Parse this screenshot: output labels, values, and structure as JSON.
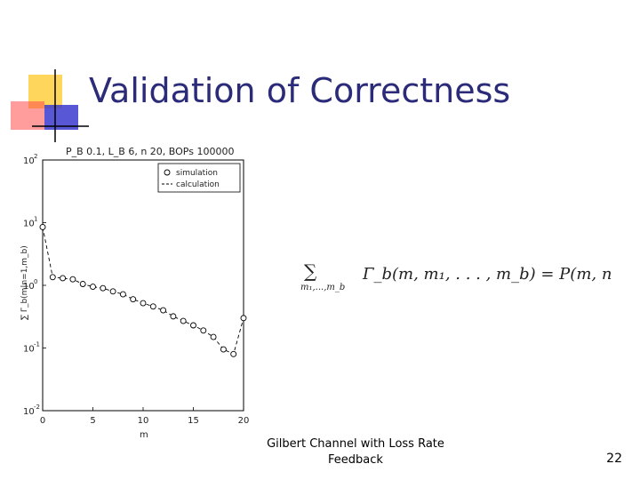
{
  "slide": {
    "title": "Validation of Correctness",
    "footer_line1": "Gilbert Channel with Loss Rate",
    "footer_line2": "Feedback",
    "page_number": "22"
  },
  "formula": {
    "sum_symbol": "∑",
    "subscript": "m₁,...,m_b",
    "body": "Γ_b(m, m₁, . . . , m_b) = P(m, n)"
  },
  "chart_data": {
    "type": "line",
    "title": "P_B 0.1, L_B 6, n 20, BOPs 100000",
    "xlabel": "m",
    "ylabel": "∑ Γ_b(m|n=1,m_b)",
    "xlim": [
      0,
      20
    ],
    "ylim": [
      0.01,
      100
    ],
    "yscale": "log",
    "x_ticks": [
      "0",
      "5",
      "10",
      "15",
      "20"
    ],
    "y_ticks": [
      {
        "base": "10",
        "exp": "2",
        "value": 100
      },
      {
        "base": "10",
        "exp": "1",
        "value": 10
      },
      {
        "base": "10",
        "exp": "0",
        "value": 1
      },
      {
        "base": "10",
        "exp": "-1",
        "value": 0.1
      },
      {
        "base": "10",
        "exp": "-2",
        "value": 0.01
      }
    ],
    "legend": {
      "position": "top-right",
      "entries": [
        "simulation",
        "calculation"
      ]
    },
    "series": [
      {
        "name": "simulation",
        "marker": "circle",
        "x": [
          0,
          1,
          2,
          3,
          4,
          5,
          6,
          7,
          8,
          9,
          10,
          11,
          12,
          13,
          14,
          15,
          16,
          17,
          18,
          19,
          20
        ],
        "y": [
          8.5,
          1.35,
          1.3,
          1.25,
          1.05,
          0.95,
          0.9,
          0.8,
          0.72,
          0.6,
          0.52,
          0.46,
          0.4,
          0.32,
          0.27,
          0.23,
          0.19,
          0.15,
          0.095,
          0.08,
          0.3
        ]
      },
      {
        "name": "calculation",
        "marker": "none",
        "x": [
          0,
          1,
          2,
          3,
          4,
          5,
          6,
          7,
          8,
          9,
          10,
          11,
          12,
          13,
          14,
          15,
          16,
          17,
          18,
          19,
          20
        ],
        "y": [
          8.5,
          1.35,
          1.3,
          1.25,
          1.05,
          0.95,
          0.9,
          0.8,
          0.72,
          0.6,
          0.52,
          0.46,
          0.4,
          0.32,
          0.27,
          0.23,
          0.19,
          0.15,
          0.095,
          0.08,
          0.3
        ]
      }
    ]
  }
}
